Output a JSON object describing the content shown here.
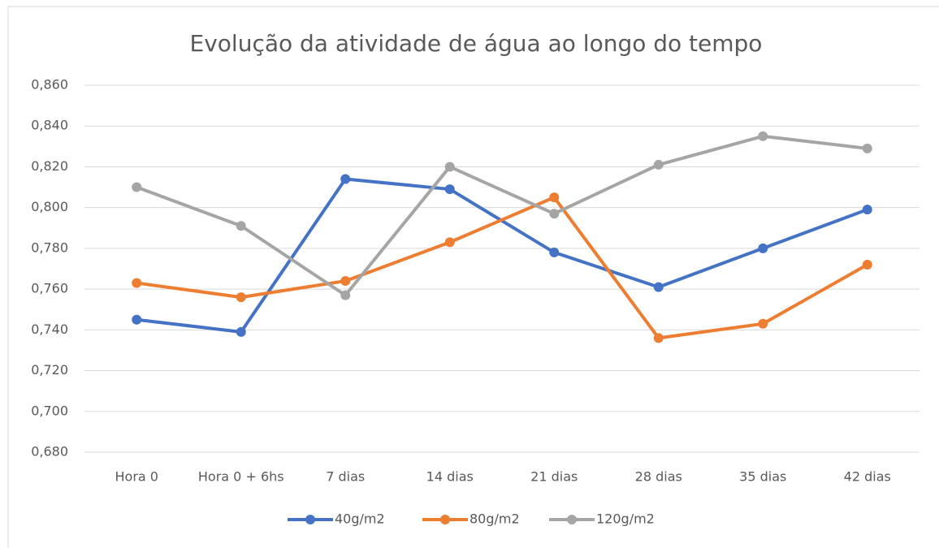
{
  "chart_data": {
    "type": "line",
    "title": "Evolução da atividade de água ao longo do tempo",
    "categories": [
      "Hora 0",
      "Hora 0 + 6hs",
      "7 dias",
      "14 dias",
      "21 dias",
      "28 dias",
      "35 dias",
      "42 dias"
    ],
    "series": [
      {
        "name": "40g/m2",
        "color": "#4472c4",
        "values": [
          0.745,
          0.739,
          0.814,
          0.809,
          0.778,
          0.761,
          0.78,
          0.799
        ]
      },
      {
        "name": "80g/m2",
        "color": "#ed7d31",
        "values": [
          0.763,
          0.756,
          0.764,
          0.783,
          0.805,
          0.736,
          0.743,
          0.772
        ]
      },
      {
        "name": "120g/m2",
        "color": "#a5a5a5",
        "values": [
          0.81,
          0.791,
          0.757,
          0.82,
          0.797,
          0.821,
          0.835,
          0.829
        ]
      }
    ],
    "ylim": [
      0.68,
      0.86
    ],
    "yticks": [
      {
        "value": 0.68,
        "label": "0,680"
      },
      {
        "value": 0.7,
        "label": "0,700"
      },
      {
        "value": 0.72,
        "label": "0,720"
      },
      {
        "value": 0.74,
        "label": "0,740"
      },
      {
        "value": 0.76,
        "label": "0,760"
      },
      {
        "value": 0.78,
        "label": "0,780"
      },
      {
        "value": 0.8,
        "label": "0,800"
      },
      {
        "value": 0.82,
        "label": "0,820"
      },
      {
        "value": 0.84,
        "label": "0,840"
      },
      {
        "value": 0.86,
        "label": "0,860"
      }
    ],
    "grid": true,
    "legend": "bottom"
  }
}
